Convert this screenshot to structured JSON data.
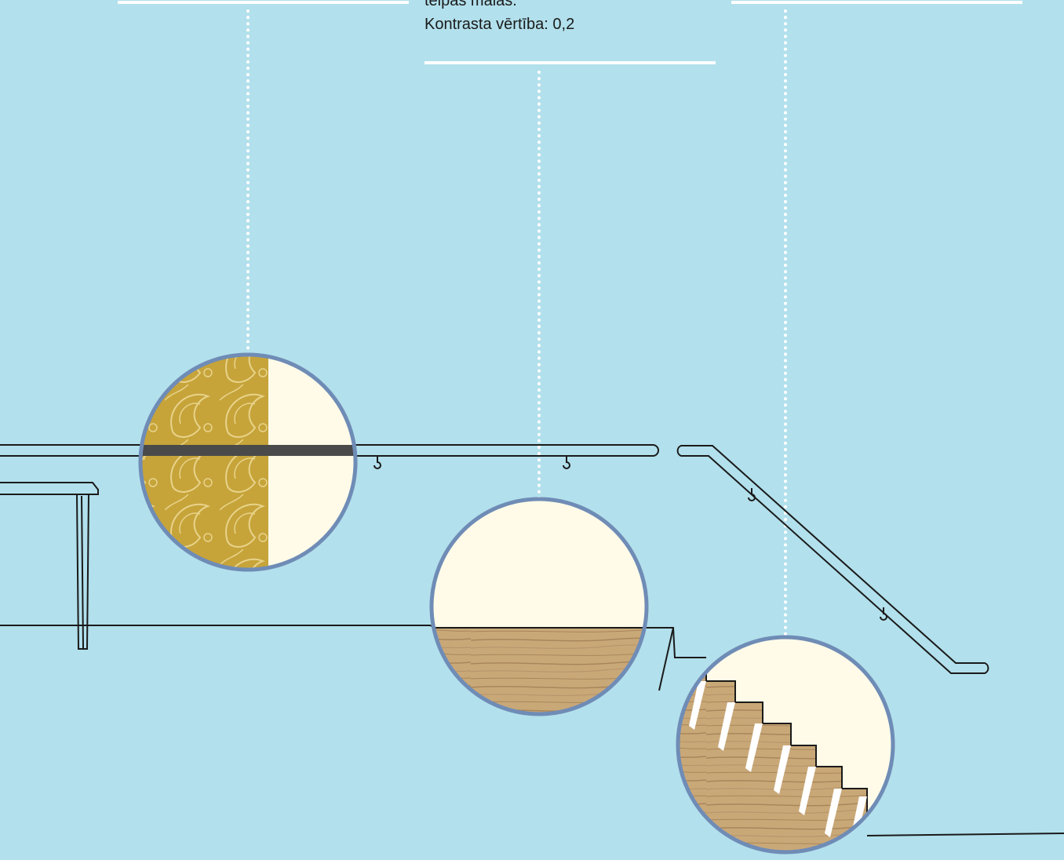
{
  "caption": {
    "line_cut": "telpas malās.",
    "contrast": "Kontrasta vērtība: 0,2"
  },
  "colors": {
    "background": "#b2e0ec",
    "circle_border": "#6f8cb6",
    "cream": "#fffbe8",
    "wallpaper": "#c6a43a",
    "wood": "#c9a878",
    "line": "#1a1a1a",
    "leader": "#ffffff"
  },
  "icons": {
    "wall_circle": "wallpaper-contrast-icon",
    "floor_circle": "floor-contrast-icon",
    "stairs_circle": "stairs-contrast-icon"
  }
}
